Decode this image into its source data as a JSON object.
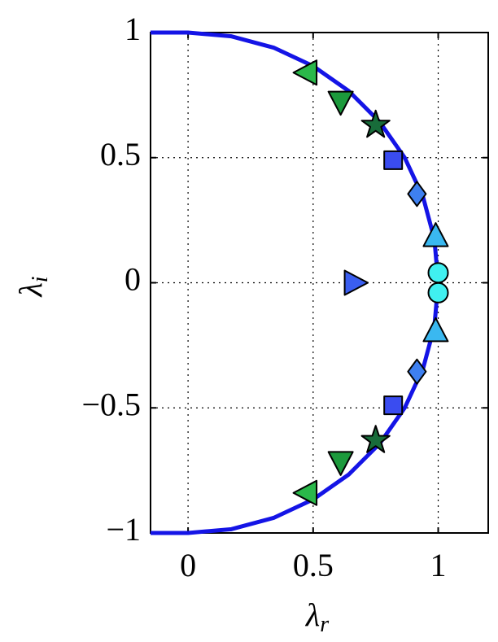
{
  "chart_data": {
    "type": "scatter",
    "xlabel": {
      "symbol": "λ",
      "subscript": "r"
    },
    "ylabel": {
      "symbol": "λ",
      "subscript": "i"
    },
    "xlim": [
      -0.15,
      1.2
    ],
    "ylim": [
      -1,
      1
    ],
    "xticks": [
      0,
      0.5,
      1
    ],
    "yticks": [
      {
        "value": -1,
        "label": "−1"
      },
      {
        "value": -0.5,
        "label": "−0.5"
      },
      0,
      0.5,
      1
    ],
    "grid": true,
    "curve": {
      "color": "#1414e6",
      "x": [
        -0.15,
        0,
        0.1736,
        0.342,
        0.5,
        0.6428,
        0.766,
        0.866,
        0.9397,
        0.9848,
        1,
        0.9848,
        0.9397,
        0.866,
        0.766,
        0.6428,
        0.5,
        0.342,
        0.1736,
        0,
        -0.15
      ],
      "y": [
        1,
        1,
        0.9848,
        0.9397,
        0.866,
        0.766,
        0.6428,
        0.5,
        0.342,
        0.1736,
        0,
        -0.1736,
        -0.342,
        -0.5,
        -0.6428,
        -0.766,
        -0.866,
        -0.9397,
        -0.9848,
        -1,
        -1
      ]
    },
    "series": [
      {
        "marker": "triangle-left",
        "color": "#2ab84a",
        "x": [
          0.47,
          0.47
        ],
        "y": [
          0.84,
          -0.84
        ]
      },
      {
        "marker": "triangle-down",
        "color": "#1c9a3c",
        "x": [
          0.61,
          0.61
        ],
        "y": [
          0.72,
          -0.72
        ]
      },
      {
        "marker": "star",
        "color": "#186c3a",
        "x": [
          0.75,
          0.75
        ],
        "y": [
          0.63,
          -0.63
        ]
      },
      {
        "marker": "square",
        "color": "#3a4cf0",
        "x": [
          0.82,
          0.82
        ],
        "y": [
          0.49,
          -0.49
        ]
      },
      {
        "marker": "diamond",
        "color": "#3e80f0",
        "x": [
          0.915,
          0.915
        ],
        "y": [
          0.355,
          -0.355
        ]
      },
      {
        "marker": "triangle-up",
        "color": "#3ab8f0",
        "x": [
          0.99,
          0.99
        ],
        "y": [
          0.19,
          -0.19
        ]
      },
      {
        "marker": "circle",
        "color": "#40f0f0",
        "x": [
          1.0,
          1.0
        ],
        "y": [
          0.04,
          -0.04
        ]
      },
      {
        "marker": "triangle-right",
        "color": "#3a5ef0",
        "x": [
          0.67
        ],
        "y": [
          0
        ]
      }
    ]
  }
}
